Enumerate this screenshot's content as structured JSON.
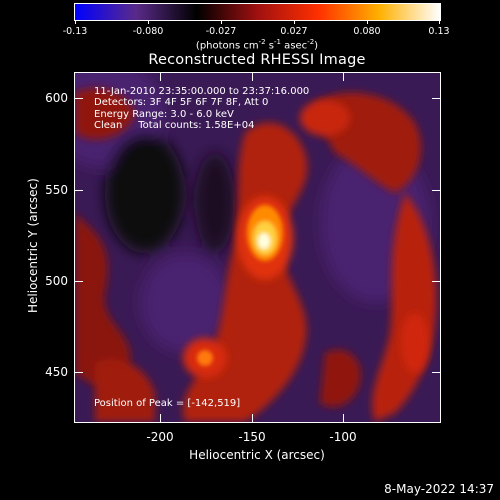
{
  "colorbar": {
    "ticks": [
      "-0.13",
      "-0.080",
      "-0.027",
      "0.027",
      "0.080",
      "0.13"
    ],
    "units_prefix": "(photons cm",
    "units_exp1": "-2",
    "units_mid1": " s",
    "units_exp2": "-1",
    "units_mid2": " asec",
    "units_exp3": "-2",
    "units_suffix": ")"
  },
  "plot": {
    "title": "Reconstructed RHESSI Image",
    "info_lines": [
      "11-Jan-2010 23:35:00.000 to 23:37:16.000",
      "Detectors: 3F 4F 5F 6F 7F 8F, Att 0",
      "Energy Range: 3.0 - 6.0 keV",
      "Clean     Total counts: 1.58E+04"
    ],
    "peak_label": "Position of Peak = [-142,519]",
    "xlabel": "Heliocentric X (arcsec)",
    "ylabel": "Heliocentric Y (arcsec)",
    "xticks": [
      "-200",
      "-150",
      "-100"
    ],
    "yticks": [
      "600",
      "550",
      "500",
      "450"
    ]
  },
  "chart_data": {
    "type": "heatmap",
    "title": "Reconstructed RHESSI Image",
    "xlabel": "Heliocentric X (arcsec)",
    "ylabel": "Heliocentric Y (arcsec)",
    "xlim": [
      -245,
      -62
    ],
    "ylim": [
      423,
      612
    ],
    "color_range": [
      -0.13,
      0.13
    ],
    "peak": [
      -142,
      519
    ],
    "colormap": [
      "#0000ff",
      "#5a2a8a",
      "#000000",
      "#a01010",
      "#ff3000",
      "#ffb000",
      "#ffffff"
    ]
  },
  "footer": {
    "timestamp": "8-May-2022 14:37"
  }
}
